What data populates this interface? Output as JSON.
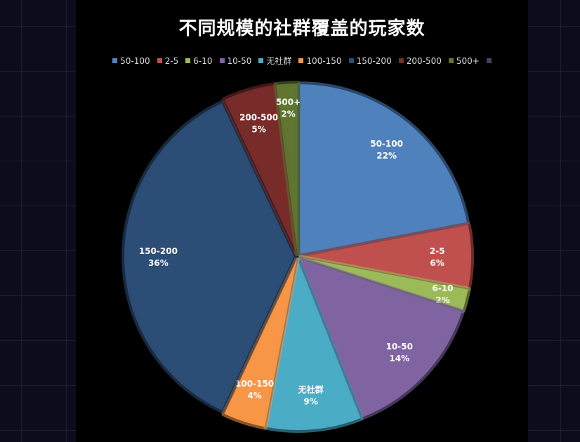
{
  "chart_data": {
    "type": "pie",
    "title": "不同规模的社群覆盖的玩家数",
    "legend_position": "top",
    "slices": [
      {
        "label": "50-100",
        "value": 22,
        "display": "22%",
        "color": "#4f81bd"
      },
      {
        "label": "2-5",
        "value": 6,
        "display": "6%",
        "color": "#c0504d"
      },
      {
        "label": "6-10",
        "value": 2,
        "display": "2%",
        "color": "#9bbb59"
      },
      {
        "label": "10-50",
        "value": 14,
        "display": "14%",
        "color": "#8064a2"
      },
      {
        "label": "无社群",
        "value": 9,
        "display": "9%",
        "color": "#4bacc6"
      },
      {
        "label": "100-150",
        "value": 4,
        "display": "4%",
        "color": "#f79646"
      },
      {
        "label": "150-200",
        "value": 36,
        "display": "36%",
        "color": "#2c4d75"
      },
      {
        "label": "200-500",
        "value": 5,
        "display": "5%",
        "color": "#772c2a"
      },
      {
        "label": "500+",
        "value": 2,
        "display": "2%",
        "color": "#5f7530"
      }
    ],
    "legend_extra_swatch_color": "#4d3b62"
  }
}
